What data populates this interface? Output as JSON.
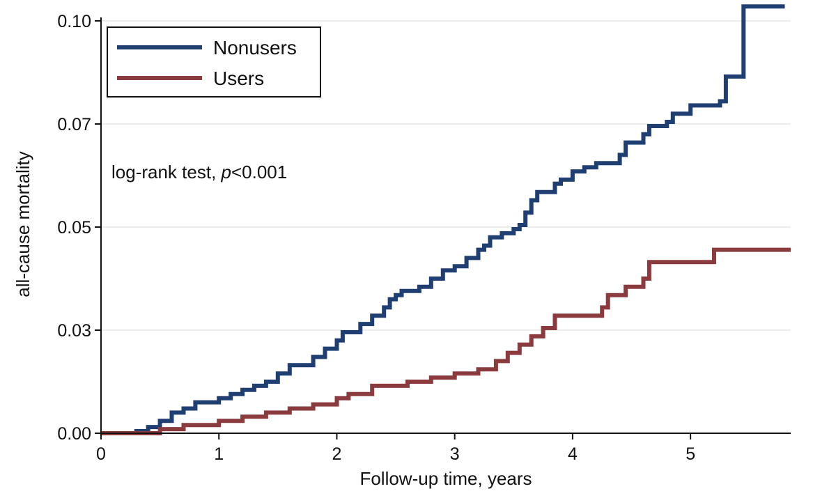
{
  "chart_data": {
    "type": "line",
    "xlabel": "Follow-up time, years",
    "ylabel": "all-cause mortality",
    "xlim": [
      0,
      5.85
    ],
    "ylim": [
      0,
      0.1
    ],
    "x_ticks": [
      0,
      1,
      2,
      3,
      4,
      5
    ],
    "x_tick_labels": [
      "0",
      "1",
      "2",
      "3",
      "4",
      "5"
    ],
    "y_ticks": [
      0,
      0.025,
      0.05,
      0.075,
      0.1
    ],
    "y_tick_labels": [
      "0.00",
      "0.03",
      "0.05",
      "0.07",
      "0.10"
    ],
    "grid": "horizontal",
    "legend_position": "top-left",
    "annotation": {
      "prefix": "log-rank test, ",
      "italic": "p",
      "suffix": "<0.001"
    },
    "series": [
      {
        "name": "Nonusers",
        "color": "#1f3f73",
        "step": true,
        "x": [
          0,
          0.3,
          0.4,
          0.5,
          0.6,
          0.7,
          0.8,
          1.0,
          1.1,
          1.2,
          1.3,
          1.4,
          1.5,
          1.6,
          1.8,
          1.9,
          2.0,
          2.05,
          2.2,
          2.3,
          2.4,
          2.45,
          2.5,
          2.55,
          2.7,
          2.8,
          2.9,
          3.0,
          3.1,
          3.2,
          3.25,
          3.3,
          3.4,
          3.5,
          3.55,
          3.6,
          3.65,
          3.7,
          3.85,
          3.9,
          4.0,
          4.1,
          4.2,
          4.4,
          4.45,
          4.6,
          4.65,
          4.8,
          4.85,
          5.0,
          5.25,
          5.3,
          5.45,
          5.8
        ],
        "y": [
          0,
          0.0005,
          0.0015,
          0.003,
          0.005,
          0.006,
          0.0075,
          0.0085,
          0.0095,
          0.0105,
          0.0115,
          0.0125,
          0.0145,
          0.0165,
          0.0185,
          0.0205,
          0.0225,
          0.0245,
          0.0265,
          0.0285,
          0.0305,
          0.0325,
          0.0335,
          0.0345,
          0.0355,
          0.0375,
          0.0395,
          0.0405,
          0.0425,
          0.0445,
          0.0455,
          0.0475,
          0.0485,
          0.0495,
          0.0505,
          0.0535,
          0.0565,
          0.0585,
          0.0605,
          0.0615,
          0.0635,
          0.0645,
          0.0655,
          0.0675,
          0.0705,
          0.0725,
          0.0745,
          0.0755,
          0.0775,
          0.0795,
          0.0805,
          0.0865,
          0.1035,
          0.1035
        ]
      },
      {
        "name": "Users",
        "color": "#8b3a3e",
        "step": true,
        "x": [
          0,
          0.5,
          0.7,
          1.0,
          1.2,
          1.4,
          1.6,
          1.8,
          2.0,
          2.1,
          2.3,
          2.6,
          2.8,
          3.0,
          3.2,
          3.35,
          3.45,
          3.55,
          3.65,
          3.75,
          3.85,
          4.25,
          4.3,
          4.45,
          4.6,
          4.65,
          5.2,
          5.85
        ],
        "y": [
          0,
          0.001,
          0.002,
          0.003,
          0.004,
          0.005,
          0.006,
          0.007,
          0.0085,
          0.0095,
          0.0115,
          0.0125,
          0.0135,
          0.0145,
          0.0155,
          0.0175,
          0.0195,
          0.0215,
          0.0235,
          0.0255,
          0.0285,
          0.0305,
          0.0335,
          0.0355,
          0.0375,
          0.0415,
          0.0445,
          0.0445
        ]
      }
    ]
  }
}
